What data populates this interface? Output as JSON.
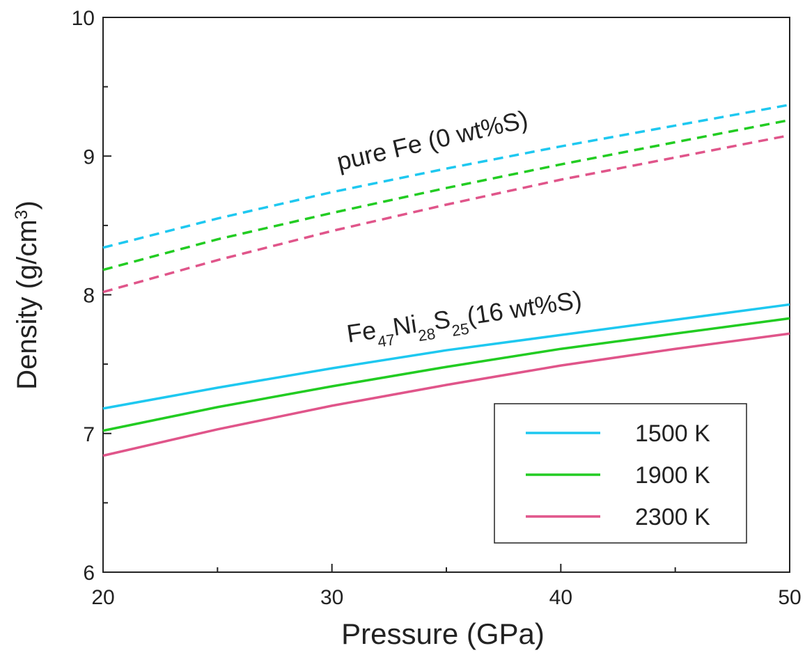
{
  "chart_data": {
    "type": "line",
    "x": [
      20,
      25,
      30,
      35,
      40,
      45,
      50
    ],
    "xlim": [
      20,
      50
    ],
    "xticks": [
      20,
      30,
      40,
      50
    ],
    "xminor": [
      25,
      35,
      45
    ],
    "ylim": [
      6,
      10
    ],
    "yticks": [
      6,
      7,
      8,
      9,
      10
    ],
    "yminor": [
      6.5,
      7.5,
      8.5,
      9.5
    ],
    "xlabel": "Pressure (GPa)",
    "ylabel": [
      {
        "text": "Density (g/cm"
      },
      {
        "text": "3",
        "sup": true
      },
      {
        "text": ")"
      }
    ],
    "legend": "lower right",
    "series": [
      {
        "name": "1500 K",
        "color": "#1ec8f0",
        "values": [
          7.18,
          7.33,
          7.47,
          7.6,
          7.71,
          7.82,
          7.93
        ]
      },
      {
        "name": "1900 K",
        "color": "#22cc22",
        "values": [
          7.02,
          7.19,
          7.34,
          7.48,
          7.61,
          7.72,
          7.83
        ]
      },
      {
        "name": "2300 K",
        "color": "#e0558a",
        "values": [
          6.84,
          7.03,
          7.2,
          7.35,
          7.49,
          7.61,
          7.72
        ]
      },
      {
        "color": "#1ec8f0",
        "dashed": true,
        "values": [
          8.34,
          8.55,
          8.74,
          8.91,
          9.07,
          9.22,
          9.37
        ]
      },
      {
        "color": "#22cc22",
        "dashed": true,
        "values": [
          8.18,
          8.4,
          8.59,
          8.77,
          8.94,
          9.1,
          9.26
        ]
      },
      {
        "color": "#e0558a",
        "dashed": true,
        "values": [
          8.02,
          8.25,
          8.46,
          8.65,
          8.83,
          8.99,
          9.15
        ]
      }
    ],
    "annotations": [
      [
        {
          "text": "pure Fe (0 wt%S)"
        }
      ],
      [
        {
          "text": "Fe"
        },
        {
          "text": "47",
          "sub": true
        },
        {
          "text": "Ni"
        },
        {
          "text": "28",
          "sub": true
        },
        {
          "text": "S"
        },
        {
          "text": "25",
          "sub": true
        },
        {
          "text": "(16 wt%S)"
        }
      ]
    ]
  }
}
